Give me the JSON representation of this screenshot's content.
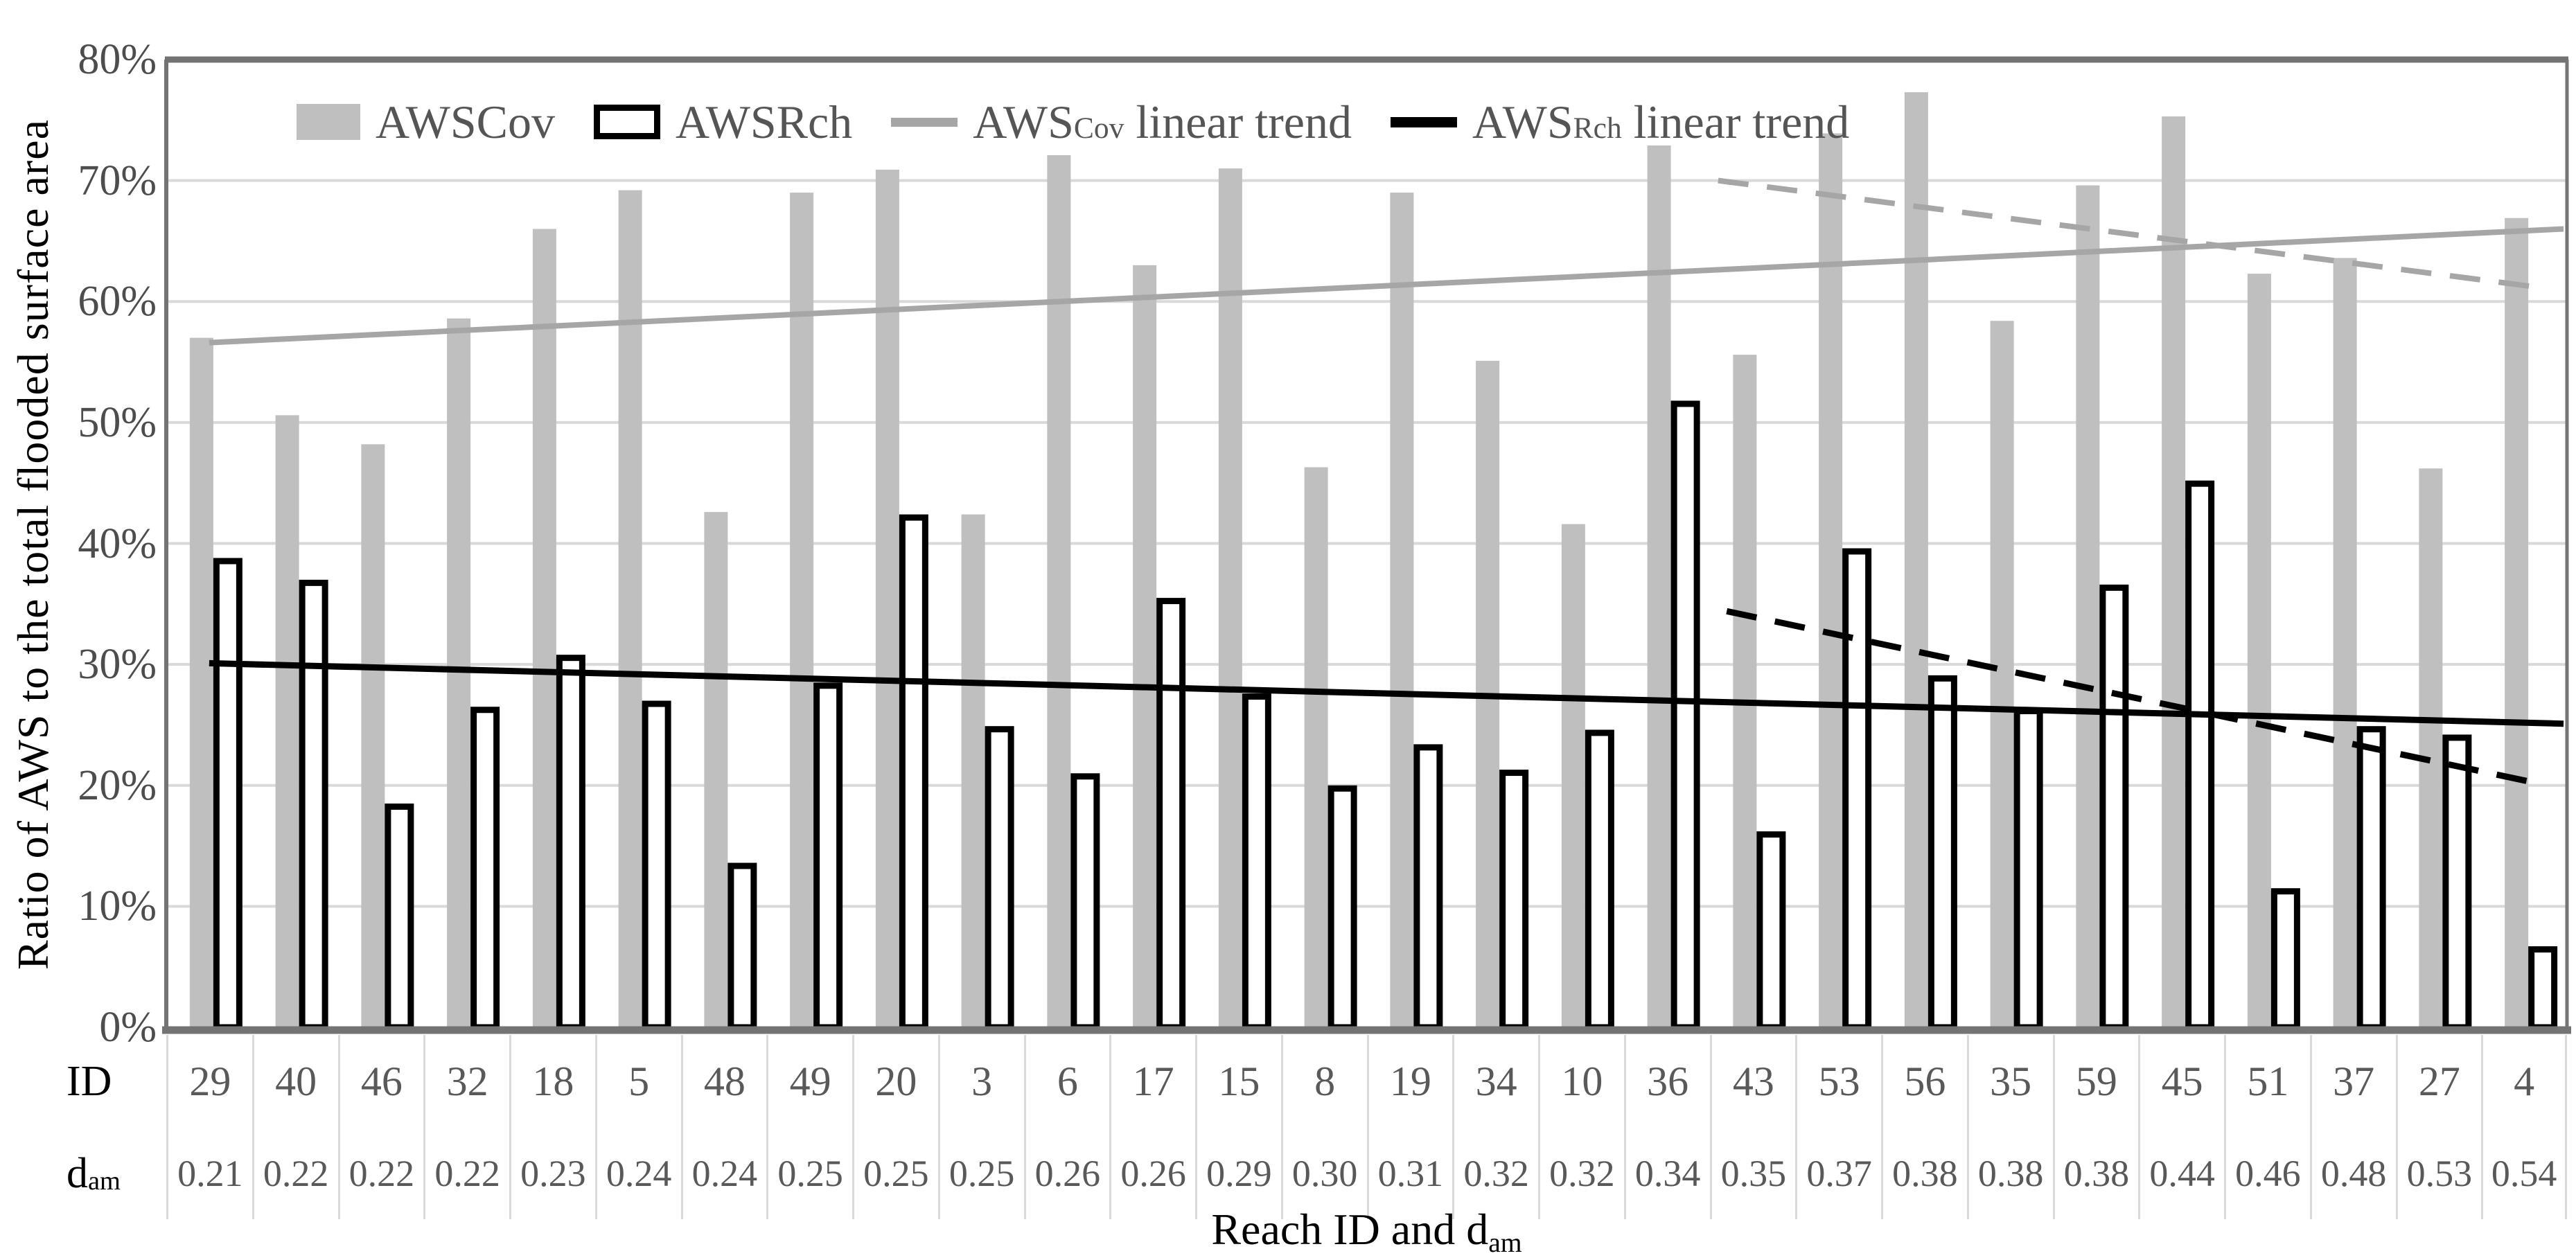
{
  "figure": {
    "y_axis_title": "Ratio of AWS to the total flooded surface area",
    "x_axis_title_pre": "Reach ID and d",
    "x_axis_title_sub": "am",
    "row_header_id": "ID",
    "row_header_dam_pre": "d",
    "row_header_dam_sub": "am"
  },
  "legend": {
    "items": [
      {
        "pre": "AWSCov",
        "sub": "",
        "post": "",
        "swatch": "bar-gray"
      },
      {
        "pre": "AWSRch",
        "sub": "",
        "post": "",
        "swatch": "bar-white"
      },
      {
        "pre": "AWS",
        "sub": "Cov",
        "post": " linear trend",
        "swatch": "line-gray"
      },
      {
        "pre": "AWS",
        "sub": "Rch",
        "post": " linear trend",
        "swatch": "line-black"
      }
    ]
  },
  "colors": {
    "awscov_bar": "#bfbfbf",
    "awsrch_bar_fill": "#ffffff",
    "awsrch_bar_stroke": "#000000",
    "awscov_trend": "#a6a6a6",
    "awsrch_trend": "#000000",
    "gridline": "#d9d9d9",
    "plot_border": "#737373",
    "tick_text": "#4d4d4d",
    "cell_text": "#595959"
  },
  "chart_data": {
    "type": "bar",
    "title": "",
    "xlabel": "Reach ID and d_am",
    "ylabel": "Ratio of AWS to the total flooded surface area",
    "ylim": [
      0,
      80
    ],
    "y_tick_step": 10,
    "y_tick_labels": [
      "0%",
      "10%",
      "20%",
      "30%",
      "40%",
      "50%",
      "60%",
      "70%",
      "80%"
    ],
    "grid": true,
    "legend_position": "top",
    "categories": [
      "29",
      "40",
      "46",
      "32",
      "18",
      "5",
      "48",
      "49",
      "20",
      "3",
      "6",
      "17",
      "15",
      "8",
      "19",
      "34",
      "10",
      "36",
      "43",
      "53",
      "56",
      "35",
      "59",
      "45",
      "51",
      "37",
      "27",
      "4"
    ],
    "dam_values": [
      "0.21",
      "0.22",
      "0.22",
      "0.22",
      "0.23",
      "0.24",
      "0.24",
      "0.25",
      "0.25",
      "0.25",
      "0.26",
      "0.26",
      "0.29",
      "0.30",
      "0.31",
      "0.32",
      "0.32",
      "0.34",
      "0.35",
      "0.37",
      "0.38",
      "0.38",
      "0.38",
      "0.44",
      "0.46",
      "0.48",
      "0.53",
      "0.54"
    ],
    "series": [
      {
        "name": "AWSCov",
        "values": [
          57.0,
          50.6,
          48.2,
          58.6,
          66.0,
          69.2,
          42.6,
          69.0,
          70.9,
          42.4,
          72.1,
          63.0,
          71.0,
          46.3,
          69.0,
          55.1,
          41.6,
          72.9,
          55.6,
          73.9,
          77.3,
          58.4,
          69.6,
          75.3,
          62.3,
          63.6,
          46.2,
          66.9
        ]
      },
      {
        "name": "AWSRch",
        "values": [
          38.8,
          37.0,
          18.5,
          26.5,
          30.8,
          27.0,
          13.6,
          28.5,
          42.4,
          24.9,
          21.0,
          35.5,
          27.6,
          20.0,
          23.4,
          21.3,
          24.6,
          51.8,
          16.2,
          39.6,
          29.1,
          26.4,
          36.6,
          45.2,
          11.5,
          24.9,
          24.2,
          6.7
        ]
      }
    ],
    "trend_lines": [
      {
        "name": "AWSCov linear trend",
        "style": "solid",
        "series": "AWSCov",
        "u1": 0.0,
        "v1": 56.6,
        "u2": 27.46,
        "v2": 66.0
      },
      {
        "name": "AWSRch linear trend",
        "style": "solid",
        "series": "AWSRch",
        "u1": 0.0,
        "v1": 30.1,
        "u2": 27.46,
        "v2": 25.1
      },
      {
        "name": "AWSCov dashed trend",
        "style": "dashed",
        "series": "AWSCov",
        "u1": 17.6,
        "v1": 70.0,
        "u2": 27.14,
        "v2": 61.2
      },
      {
        "name": "AWSRch dashed trend",
        "style": "dashed",
        "series": "AWSRch",
        "u1": 17.7,
        "v1": 34.4,
        "u2": 27.14,
        "v2": 20.2
      }
    ]
  }
}
